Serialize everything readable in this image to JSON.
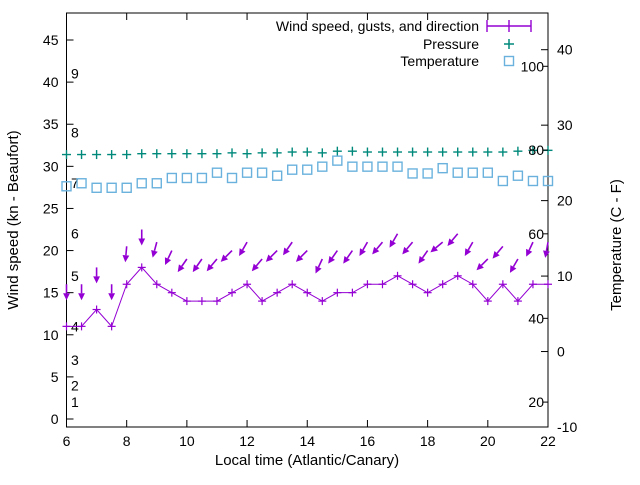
{
  "chart_data": {
    "type": "line",
    "xlabel": "Local time (Atlantic/Canary)",
    "ylabel_left": "Wind speed (kn - Beaufort)",
    "ylabel_right": "Temperature (C - F)",
    "grid": false,
    "legend_position": "top-right-inside",
    "legend": [
      {
        "label": "Wind speed, gusts, and direction",
        "marker": "errorbar-line",
        "color": "#9400d3"
      },
      {
        "label": "Pressure",
        "marker": "plus",
        "color": "#00897b"
      },
      {
        "label": "Temperature",
        "marker": "open-square",
        "color": "#6ab2dd"
      }
    ],
    "axes": {
      "x": {
        "min": 6,
        "max": 22,
        "tick_labels": [
          "6",
          "8",
          "10",
          "12",
          "14",
          "16",
          "18",
          "20",
          "22"
        ],
        "tick_values": [
          6,
          8,
          10,
          12,
          14,
          16,
          18,
          20,
          22
        ]
      },
      "y_left": {
        "unit": "kn",
        "tick_labels": [
          "0",
          "5",
          "10",
          "15",
          "20",
          "25",
          "30",
          "35",
          "40",
          "45"
        ],
        "tick_values": [
          0,
          5,
          10,
          15,
          20,
          25,
          30,
          35,
          40,
          45
        ]
      },
      "y_right": {
        "unit": "C",
        "tick_labels": [
          "-10",
          "0",
          "10",
          "20",
          "30",
          "40"
        ],
        "tick_values": [
          -10,
          0,
          10,
          20,
          30,
          40
        ]
      },
      "beaufort_inplot_labels": [
        {
          "label": "1",
          "kn": 2
        },
        {
          "label": "2",
          "kn": 4
        },
        {
          "label": "3",
          "kn": 7
        },
        {
          "label": "4",
          "kn": 11
        },
        {
          "label": "5",
          "kn": 17
        },
        {
          "label": "6",
          "kn": 22
        },
        {
          "label": "7",
          "kn": 28
        },
        {
          "label": "8",
          "kn": 34
        },
        {
          "label": "9",
          "kn": 41
        }
      ],
      "fahrenheit_inplot_labels": [
        {
          "label": "20",
          "c": -6.7
        },
        {
          "label": "40",
          "c": 4.4
        },
        {
          "label": "60",
          "c": 15.6
        },
        {
          "label": "80",
          "c": 26.7
        },
        {
          "label": "100",
          "c": 37.8
        }
      ]
    },
    "x": [
      6,
      6.5,
      7,
      7.5,
      8,
      8.5,
      9,
      9.5,
      10,
      10.5,
      11,
      11.5,
      12,
      12.5,
      13,
      13.5,
      14,
      14.5,
      15,
      15.5,
      16,
      16.5,
      17,
      17.5,
      18,
      18.5,
      19,
      19.5,
      20,
      20.5,
      21,
      21.5,
      22
    ],
    "series": [
      {
        "name": "wind_speed_kn",
        "axis": "left",
        "color": "#9400d3",
        "values": [
          11,
          11,
          13,
          11,
          16,
          18,
          16,
          15,
          14,
          14,
          14,
          15,
          16,
          14,
          15,
          16,
          15,
          14,
          15,
          15,
          16,
          16,
          17,
          16,
          15,
          16,
          17,
          16,
          14,
          16,
          14,
          16,
          16
        ]
      },
      {
        "name": "wind_gust_kn",
        "axis": "left",
        "color": "#9400d3",
        "values": [
          16,
          16,
          18,
          16,
          20.5,
          22.5,
          21,
          20,
          19,
          19,
          19,
          20,
          21,
          19,
          20,
          21,
          20,
          19,
          20,
          20,
          21,
          21,
          22,
          21,
          20,
          21,
          22,
          21,
          19,
          20.5,
          19,
          21,
          21
        ]
      },
      {
        "name": "wind_direction_arrow_deg_from_down",
        "axis": "left",
        "color": "#9400d3",
        "values": [
          0,
          0,
          0,
          0,
          5,
          0,
          15,
          25,
          35,
          35,
          40,
          45,
          30,
          40,
          45,
          35,
          45,
          25,
          35,
          35,
          30,
          40,
          30,
          40,
          35,
          50,
          40,
          30,
          45,
          40,
          30,
          25,
          10
        ]
      },
      {
        "name": "pressure_scaled_left_axis",
        "axis": "left",
        "color": "#00897b",
        "values": [
          31.4,
          31.4,
          31.4,
          31.4,
          31.4,
          31.5,
          31.5,
          31.5,
          31.5,
          31.5,
          31.5,
          31.6,
          31.5,
          31.6,
          31.6,
          31.7,
          31.7,
          31.6,
          31.8,
          31.8,
          31.7,
          31.7,
          31.7,
          31.7,
          31.7,
          31.7,
          31.7,
          31.7,
          31.7,
          31.7,
          31.8,
          31.9,
          31.9
        ]
      },
      {
        "name": "temperature_c",
        "axis": "right",
        "color": "#6ab2dd",
        "values": [
          21.9,
          22.3,
          21.7,
          21.7,
          21.7,
          22.3,
          22.3,
          23.0,
          23.0,
          23.0,
          23.7,
          23.0,
          23.7,
          23.7,
          23.3,
          24.1,
          24.1,
          24.5,
          25.3,
          24.5,
          24.5,
          24.5,
          24.5,
          23.6,
          23.6,
          24.3,
          23.7,
          23.7,
          23.7,
          22.6,
          23.3,
          22.6,
          22.6
        ]
      }
    ],
    "colors": {
      "axis": "#000000",
      "wind": "#9400d3",
      "pressure": "#00897b",
      "temperature": "#6ab2dd"
    }
  }
}
